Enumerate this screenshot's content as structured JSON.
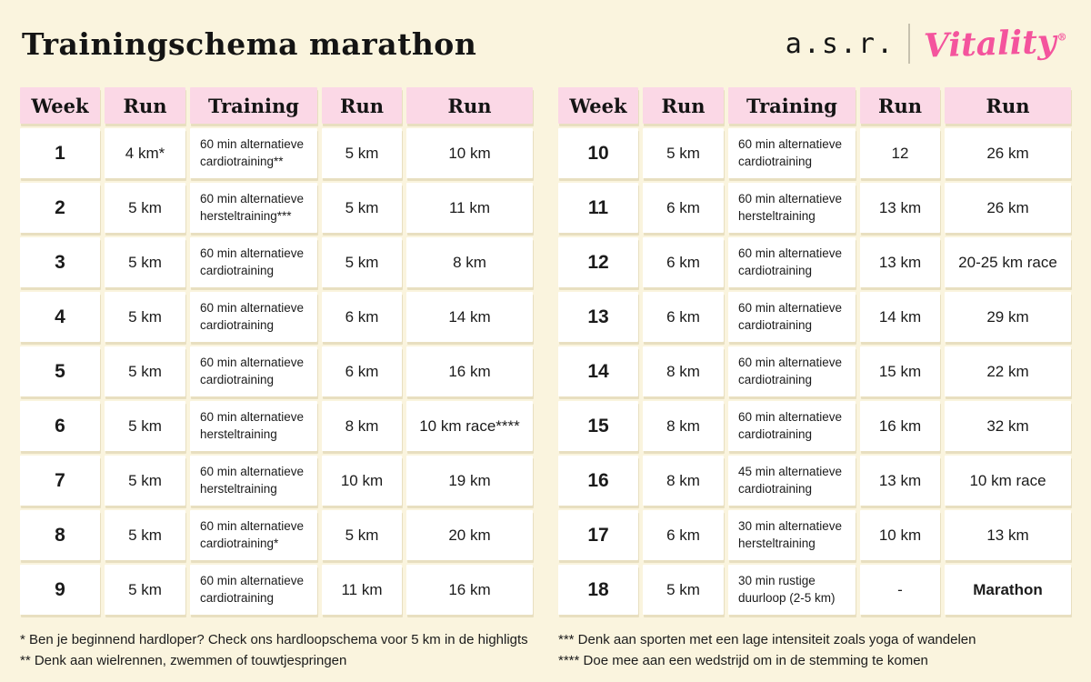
{
  "page": {
    "title": "Trainingschema marathon",
    "brand": {
      "asr": "a.s.r.",
      "vitality": "Vitality",
      "registered": "®"
    },
    "colors": {
      "background": "#FAF4DE",
      "header_pink": "#FBD8E6",
      "cell_white": "#FFFFFF",
      "text": "#1B1B1B",
      "vitality_pink": "#F4549D",
      "cell_shadow": "#D9CDA8"
    }
  },
  "tables": [
    {
      "name": "weeks-1-9",
      "headers": [
        "Week",
        "Run",
        "Training",
        "Run",
        "Run"
      ],
      "rows": [
        [
          "1",
          "4 km*",
          "60 min alternatieve\ncardiotraining**",
          "5 km",
          "10 km"
        ],
        [
          "2",
          "5 km",
          "60 min alternatieve\nhersteltraining***",
          "5 km",
          "11 km"
        ],
        [
          "3",
          "5 km",
          "60 min alternatieve\ncardiotraining",
          "5 km",
          "8 km"
        ],
        [
          "4",
          "5 km",
          "60 min alternatieve\ncardiotraining",
          "6 km",
          "14 km"
        ],
        [
          "5",
          "5 km",
          "60 min alternatieve\ncardiotraining",
          "6 km",
          "16 km"
        ],
        [
          "6",
          "5 km",
          "60 min alternatieve\nhersteltraining",
          "8 km",
          "10 km race****"
        ],
        [
          "7",
          "5 km",
          "60 min alternatieve\nhersteltraining",
          "10 km",
          "19 km"
        ],
        [
          "8",
          "5 km",
          "60 min alternatieve\ncardiotraining*",
          "5 km",
          "20 km"
        ],
        [
          "9",
          "5 km",
          "60 min alternatieve\ncardiotraining",
          "11 km",
          "16 km"
        ]
      ]
    },
    {
      "name": "weeks-10-18",
      "headers": [
        "Week",
        "Run",
        "Training",
        "Run",
        "Run"
      ],
      "rows": [
        [
          "10",
          "5 km",
          "60 min alternatieve\ncardiotraining",
          "12",
          "26 km"
        ],
        [
          "11",
          "6 km",
          "60 min alternatieve\nhersteltraining",
          "13 km",
          "26 km"
        ],
        [
          "12",
          "6 km",
          "60 min alternatieve\ncardiotraining",
          "13 km",
          "20-25 km race"
        ],
        [
          "13",
          "6 km",
          "60 min alternatieve\ncardiotraining",
          "14 km",
          "29 km"
        ],
        [
          "14",
          "8 km",
          "60 min alternatieve\ncardiotraining",
          "15 km",
          "22 km"
        ],
        [
          "15",
          "8 km",
          "60 min alternatieve\ncardiotraining",
          "16 km",
          "32 km"
        ],
        [
          "16",
          "8 km",
          "45 min alternatieve\ncardiotraining",
          "13 km",
          "10 km race"
        ],
        [
          "17",
          "6 km",
          "30 min alternatieve\nhersteltraining",
          "10 km",
          "13 km"
        ],
        [
          "18",
          "5 km",
          "30 min rustige\nduurloop (2-5 km)",
          "-",
          {
            "text": "Marathon",
            "bold": true
          }
        ]
      ]
    }
  ],
  "footnotes": {
    "left": [
      "* Ben je beginnend hardloper? Check ons hardloopschema voor 5 km in de highligts",
      "** Denk aan wielrennen, zwemmen of touwtjespringen"
    ],
    "right": [
      "*** Denk aan sporten met een lage intensiteit zoals yoga of wandelen",
      "**** Doe mee aan een wedstrijd om in de stemming te komen"
    ]
  }
}
